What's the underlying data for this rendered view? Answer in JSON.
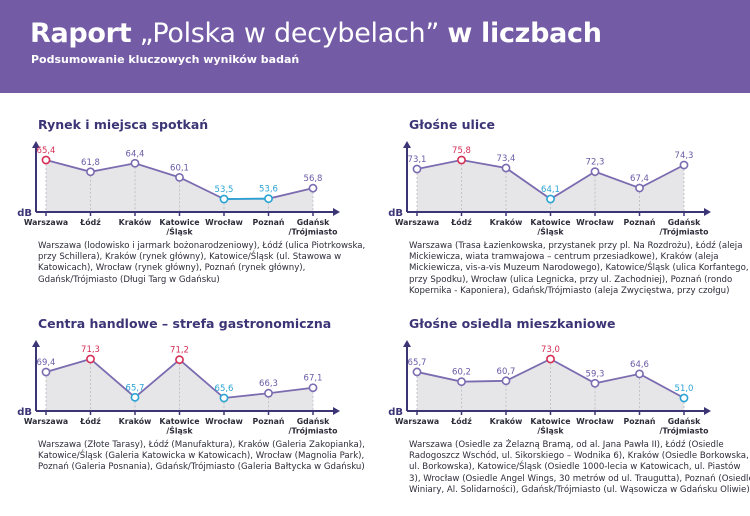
{
  "header": {
    "title_bold_1": "Raport",
    "title_thin": "„Polska w decybelach”",
    "title_bold_2": "w liczbach",
    "subtitle": "Podsumowanie kluczowych wyników badań"
  },
  "colors": {
    "header_bg": "#735ba6",
    "line": "#7b6bb0",
    "max_point": "#d62d55",
    "min_point": "#2aa3d4",
    "area_fill": "#e6e6e8",
    "axis": "#3b3576"
  },
  "chart_data": [
    {
      "type": "line",
      "title": "Rynek i miejsca spotkań",
      "ylabel": "dB",
      "categories": [
        "Warszawa",
        "Łódź",
        "Kraków",
        "Katowice\n/Śląsk",
        "Wrocław",
        "Poznań",
        "Gdańsk\n/Trójmiasto"
      ],
      "values": [
        65.4,
        61.8,
        64.4,
        60.1,
        53.5,
        53.6,
        56.8
      ],
      "value_labels": [
        "65,4",
        "61,8",
        "64,4",
        "60,1",
        "53,5",
        "53,6",
        "56,8"
      ],
      "highlight_max": [
        0
      ],
      "highlight_min": [
        4,
        5
      ],
      "description": "Warszawa (lodowisko i jarmark bożonarodzeniowy), Łódź (ulica Piotrkowska, przy Schillera), Kraków (rynek główny), Katowice/Śląsk (ul. Stawowa w Katowicach), Wrocław (rynek główny), Poznań (rynek główny), Gdańsk/Trójmiasto (Długi Targ w Gdańsku)"
    },
    {
      "type": "line",
      "title": "Głośne ulice",
      "ylabel": "dB",
      "categories": [
        "Warszawa",
        "Łódź",
        "Kraków",
        "Katowice\n/Śląsk",
        "Wrocław",
        "Poznań",
        "Gdańsk\n/Trójmiasto"
      ],
      "values": [
        73.1,
        75.8,
        73.4,
        64.1,
        72.3,
        67.4,
        74.3
      ],
      "value_labels": [
        "73,1",
        "75,8",
        "73,4",
        "64,1",
        "72,3",
        "67,4",
        "74,3"
      ],
      "highlight_max": [
        1
      ],
      "highlight_min": [
        3
      ],
      "description": "Warszawa (Trasa Łazienkowska, przystanek przy pl. Na Rozdrożu), Łódź (aleja Mickiewicza, wiata tramwajowa – centrum przesiadkowe), Kraków (aleja Mickiewicza, vis-a-vis Muzeum Narodowego), Katowice/Śląsk (ulica Korfantego, przy Spodku), Wrocław (ulica Legnicka, przy ul. Zachodniej), Poznań (rondo Kopernika - Kaponiera), Gdańsk/Trójmiasto (aleja Zwycięstwa, przy czołgu)"
    },
    {
      "type": "line",
      "title": "Centra handlowe – strefa gastronomiczna",
      "ylabel": "dB",
      "categories": [
        "Warszawa",
        "Łódź",
        "Kraków",
        "Katowice\n/Śląsk",
        "Wrocław",
        "Poznań",
        "Gdańsk\n/Trójmiasto"
      ],
      "values": [
        69.4,
        71.3,
        65.7,
        71.2,
        65.6,
        66.3,
        67.1
      ],
      "value_labels": [
        "69,4",
        "71,3",
        "65,7",
        "71,2",
        "65,6",
        "66,3",
        "67,1"
      ],
      "highlight_max": [
        1,
        3
      ],
      "highlight_min": [
        2,
        4
      ],
      "description": "Warszawa (Złote Tarasy), Łódź (Manufaktura), Kraków (Galeria Zakopianka), Katowice/Śląsk (Galeria Katowicka w Katowicach), Wrocław (Magnolia Park), Poznań (Galeria Posnania), Gdańsk/Trójmiasto (Galeria Bałtycka w Gdańsku)"
    },
    {
      "type": "line",
      "title": "Głośne osiedla mieszkaniowe",
      "ylabel": "dB",
      "categories": [
        "Warszawa",
        "Łódź",
        "Kraków",
        "Katowice\n/Śląsk",
        "Wrocław",
        "Poznań",
        "Gdańsk\n/Trójmiasto"
      ],
      "values": [
        65.7,
        60.2,
        60.7,
        73.0,
        59.3,
        64.6,
        51.0
      ],
      "value_labels": [
        "65,7",
        "60,2",
        "60,7",
        "73,0",
        "59,3",
        "64,6",
        "51,0"
      ],
      "highlight_max": [
        3
      ],
      "highlight_min": [
        6
      ],
      "description": "Warszawa (Osiedle za Żelazną Bramą, od al. Jana Pawła II), Łódź (Osiedle Radogoszcz Wschód, ul. Sikorskiego – Wodnika 6), Kraków (Osiedle Borkowska, ul. Borkowska), Katowice/Śląsk (Osiedle 1000-lecia w Katowicach, ul. Piastów 3), Wrocław (Osiedle Angel Wings, 30 metrów od ul. Traugutta), Poznań (Osiedle Winiary, Al. Solidarności), Gdańsk/Trójmiasto (ul. Wąsowicza w Gdańsku Oliwie)."
    }
  ]
}
